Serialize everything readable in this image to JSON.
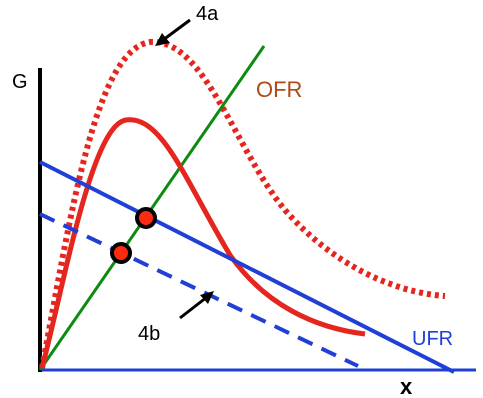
{
  "diagram": {
    "axis_y_label": "G",
    "axis_x_label": "x",
    "labels": {
      "ofr": "OFR",
      "ufr": "UFR",
      "annotation_4a": "4a",
      "annotation_4b": "4b"
    },
    "colors": {
      "red_curve": "#e5261f",
      "green_line": "#0d8a10",
      "blue_line": "#1f3fd6",
      "ofr_label": "#b04a14",
      "ufr_label": "#1f3fd6",
      "axis": "#000000",
      "marker_fill": "#ff2a10"
    },
    "curves": [
      {
        "name": "4a",
        "style": "dotted",
        "color": "red"
      },
      {
        "name": "solid-red",
        "style": "solid",
        "color": "red"
      },
      {
        "name": "OFR",
        "style": "solid",
        "color": "green"
      },
      {
        "name": "UFR",
        "style": "solid",
        "color": "blue"
      },
      {
        "name": "4b",
        "style": "dashed",
        "color": "blue"
      }
    ],
    "intersection_markers": 2
  }
}
